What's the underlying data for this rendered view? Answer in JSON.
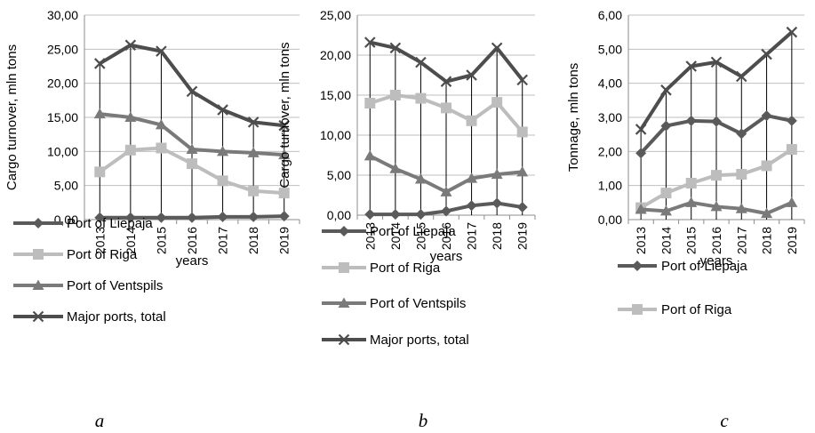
{
  "chart_data": [
    {
      "type": "line",
      "panel_label": "a",
      "xlabel": "years",
      "ylabel": "Cargo turnover, mln tons",
      "ylim": [
        0,
        30
      ],
      "yticks": [
        "0,00",
        "5,00",
        "10,00",
        "15,00",
        "20,00",
        "25,00",
        "30,00"
      ],
      "categories": [
        "2013",
        "2014",
        "2015",
        "2016",
        "2017",
        "2018",
        "2019"
      ],
      "grid": "horizontal",
      "drop_lines": true,
      "legend_position": "bottom",
      "series": [
        {
          "name": "Port of Liepaja",
          "marker": "diamond",
          "color": "#5a5a5a",
          "values": [
            0.3,
            0.3,
            0.3,
            0.3,
            0.4,
            0.4,
            0.5
          ]
        },
        {
          "name": "Port of Riga",
          "marker": "square",
          "color": "#bdbdbd",
          "values": [
            7.0,
            10.2,
            10.5,
            8.2,
            5.7,
            4.2,
            3.9
          ]
        },
        {
          "name": "Port of Ventspils",
          "marker": "triangle",
          "color": "#7a7a7a",
          "values": [
            15.5,
            15.0,
            13.9,
            10.3,
            10.0,
            9.8,
            9.5
          ]
        },
        {
          "name": "Major ports, total",
          "marker": "x",
          "color": "#4d4d4d",
          "values": [
            22.9,
            25.6,
            24.7,
            18.8,
            16.1,
            14.3,
            13.8
          ]
        }
      ]
    },
    {
      "type": "line",
      "panel_label": "b",
      "xlabel": "years",
      "ylabel": "Cargo turnover, mln tons",
      "ylim": [
        0,
        25
      ],
      "yticks": [
        "0,00",
        "5,00",
        "10,00",
        "15,00",
        "20,00",
        "25,00"
      ],
      "categories": [
        "2013",
        "2014",
        "2015",
        "2016",
        "2017",
        "2018",
        "2019"
      ],
      "grid": "horizontal",
      "drop_lines": true,
      "legend_position": "bottom",
      "series": [
        {
          "name": "Port of Liepaja",
          "marker": "diamond",
          "color": "#5a5a5a",
          "values": [
            0.1,
            0.1,
            0.1,
            0.5,
            1.2,
            1.5,
            1.0
          ]
        },
        {
          "name": "Port of Riga",
          "marker": "square",
          "color": "#bdbdbd",
          "values": [
            14.0,
            15.0,
            14.6,
            13.4,
            11.8,
            14.1,
            10.4
          ]
        },
        {
          "name": "Port of Ventspils",
          "marker": "triangle",
          "color": "#7a7a7a",
          "values": [
            7.4,
            5.8,
            4.5,
            2.9,
            4.6,
            5.1,
            5.4
          ]
        },
        {
          "name": "Major ports, total",
          "marker": "x",
          "color": "#4d4d4d",
          "values": [
            21.6,
            20.9,
            19.1,
            16.7,
            17.5,
            20.9,
            16.9
          ]
        }
      ]
    },
    {
      "type": "line",
      "panel_label": "c",
      "xlabel": "years",
      "ylabel": "Tonnage, mln tons",
      "ylim": [
        0,
        6
      ],
      "yticks": [
        "0,00",
        "1,00",
        "2,00",
        "3,00",
        "4,00",
        "5,00",
        "6,00"
      ],
      "categories": [
        "2013",
        "2014",
        "2015",
        "2016",
        "2017",
        "2018",
        "2019"
      ],
      "grid": "horizontal",
      "drop_lines": true,
      "legend_position": "bottom",
      "series": [
        {
          "name": "Port of Liepaja",
          "marker": "diamond",
          "color": "#5a5a5a",
          "values": [
            1.95,
            2.75,
            2.9,
            2.88,
            2.52,
            3.05,
            2.9
          ]
        },
        {
          "name": "Port of Riga",
          "marker": "square",
          "color": "#bdbdbd",
          "values": [
            0.35,
            0.78,
            1.07,
            1.3,
            1.33,
            1.58,
            2.06
          ]
        },
        {
          "name": "",
          "marker": "triangle",
          "color": "#7a7a7a",
          "values": [
            0.3,
            0.25,
            0.5,
            0.38,
            0.32,
            0.18,
            0.5
          ]
        },
        {
          "name": "",
          "marker": "x",
          "color": "#4d4d4d",
          "values": [
            2.65,
            3.8,
            4.5,
            4.62,
            4.2,
            4.85,
            5.5
          ]
        }
      ]
    }
  ]
}
